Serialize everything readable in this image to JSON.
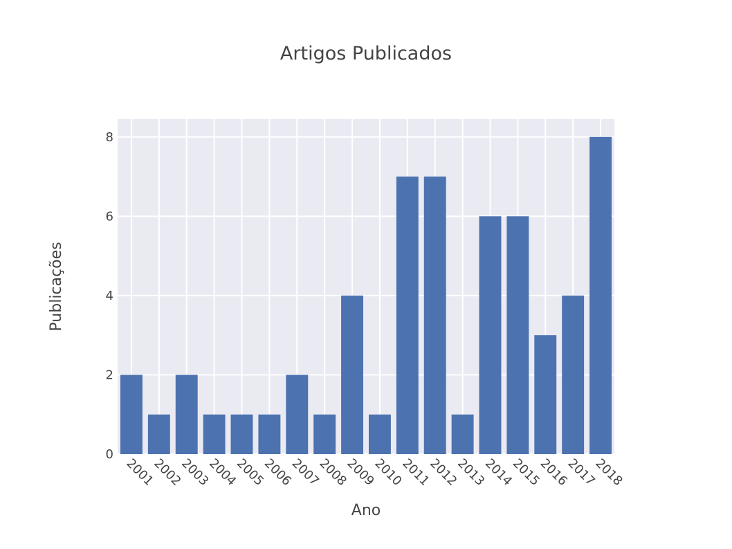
{
  "chart_data": {
    "type": "bar",
    "title": "Artigos Publicados",
    "xlabel": "Ano",
    "ylabel": "Publicações",
    "categories": [
      "2001",
      "2002",
      "2003",
      "2004",
      "2005",
      "2006",
      "2007",
      "2008",
      "2009",
      "2010",
      "2011",
      "2012",
      "2013",
      "2014",
      "2015",
      "2016",
      "2017",
      "2018"
    ],
    "values": [
      2,
      1,
      2,
      1,
      1,
      1,
      2,
      1,
      4,
      1,
      7,
      7,
      1,
      6,
      6,
      3,
      4,
      8
    ],
    "ylim": [
      0,
      8.45
    ],
    "yticks": [
      0,
      2,
      4,
      6,
      8
    ],
    "grid": true,
    "colors": {
      "bar": "#4c72b0",
      "plot_bg": "#eaeaf2",
      "grid": "#ffffff",
      "text": "#444444"
    }
  }
}
